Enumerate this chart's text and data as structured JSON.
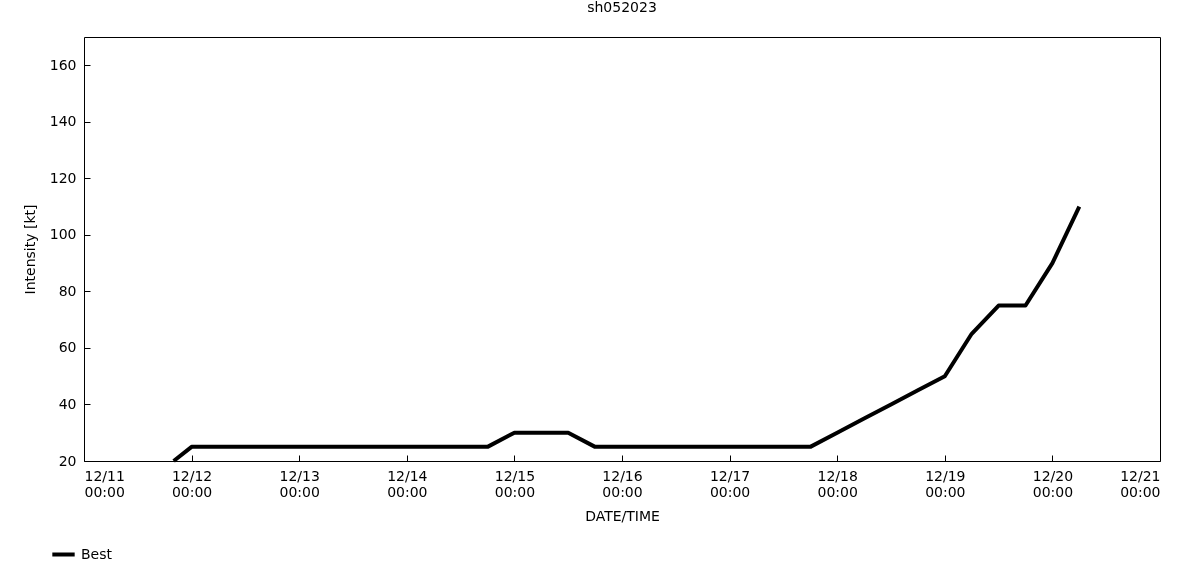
{
  "chart_data": {
    "type": "line",
    "title": "sh052023",
    "xlabel": "DATE/TIME",
    "ylabel": "Intensity [kt]",
    "x": [
      "2023-12-11T20:00",
      "2023-12-12T00:00",
      "2023-12-14T18:00",
      "2023-12-15T00:00",
      "2023-12-15T12:00",
      "2023-12-15T18:00",
      "2023-12-17T18:00",
      "2023-12-18T00:00",
      "2023-12-18T06:00",
      "2023-12-18T12:00",
      "2023-12-18T18:00",
      "2023-12-19T00:00",
      "2023-12-19T06:00",
      "2023-12-19T12:00",
      "2023-12-19T18:00",
      "2023-12-20T00:00",
      "2023-12-20T06:00"
    ],
    "series": [
      {
        "name": "Best",
        "color": "#000000",
        "values": [
          20,
          25,
          25,
          30,
          30,
          25,
          25,
          30,
          35,
          40,
          45,
          50,
          65,
          75,
          75,
          90,
          110
        ]
      }
    ],
    "xlim": [
      "2023-12-11T00:00",
      "2023-12-21T00:00"
    ],
    "xticks": [
      {
        "value": "2023-12-11T00:00",
        "label": "12/11\n00:00"
      },
      {
        "value": "2023-12-12T00:00",
        "label": "12/12\n00:00"
      },
      {
        "value": "2023-12-13T00:00",
        "label": "12/13\n00:00"
      },
      {
        "value": "2023-12-14T00:00",
        "label": "12/14\n00:00"
      },
      {
        "value": "2023-12-15T00:00",
        "label": "12/15\n00:00"
      },
      {
        "value": "2023-12-16T00:00",
        "label": "12/16\n00:00"
      },
      {
        "value": "2023-12-17T00:00",
        "label": "12/17\n00:00"
      },
      {
        "value": "2023-12-18T00:00",
        "label": "12/18\n00:00"
      },
      {
        "value": "2023-12-19T00:00",
        "label": "12/19\n00:00"
      },
      {
        "value": "2023-12-20T00:00",
        "label": "12/20\n00:00"
      },
      {
        "value": "2023-12-21T00:00",
        "label": "12/21\n00:00"
      }
    ],
    "ylim": [
      20,
      170
    ],
    "yticks": [
      20,
      40,
      60,
      80,
      100,
      120,
      140,
      160
    ],
    "grid": false,
    "legend": "bottom left",
    "marker": "none",
    "line_style": "solid"
  }
}
